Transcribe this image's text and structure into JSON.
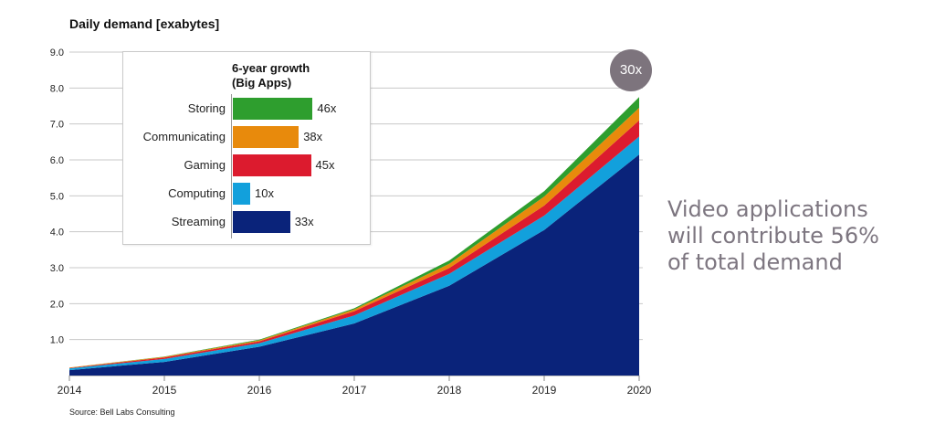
{
  "chart_data": {
    "type": "area",
    "stacked": true,
    "title": "Daily demand [exabytes]",
    "x": [
      "2014",
      "2015",
      "2016",
      "2017",
      "2018",
      "2019",
      "2020"
    ],
    "yticks": [
      "1.0",
      "2.0",
      "3.0",
      "4.0",
      "5.0",
      "6.0",
      "7.0",
      "8.0",
      "9.0"
    ],
    "ylim": [
      0,
      9
    ],
    "grid": true,
    "series": [
      {
        "name": "Streaming",
        "color": "#0a237a",
        "values": [
          0.15,
          0.38,
          0.8,
          1.45,
          2.5,
          4.05,
          6.15
        ]
      },
      {
        "name": "Computing",
        "color": "#12a0dc",
        "values": [
          0.05,
          0.08,
          0.1,
          0.22,
          0.33,
          0.4,
          0.5
        ]
      },
      {
        "name": "Gaming",
        "color": "#dc1b2e",
        "values": [
          0.01,
          0.04,
          0.05,
          0.12,
          0.16,
          0.28,
          0.45
        ]
      },
      {
        "name": "Communicating",
        "color": "#e88a0c",
        "values": [
          0.01,
          0.02,
          0.03,
          0.05,
          0.12,
          0.25,
          0.35
        ]
      },
      {
        "name": "Storing",
        "color": "#2e9e2e",
        "values": [
          0.0,
          0.01,
          0.02,
          0.03,
          0.09,
          0.15,
          0.3
        ]
      }
    ],
    "badge": "30x",
    "inset": {
      "title": "6-year growth\n(Big Apps)",
      "bars": [
        {
          "label": "Storing",
          "value": 46,
          "display": "46x",
          "color": "#2e9e2e"
        },
        {
          "label": "Communicating",
          "value": 38,
          "display": "38x",
          "color": "#e88a0c"
        },
        {
          "label": "Gaming",
          "value": 45,
          "display": "45x",
          "color": "#dc1b2e"
        },
        {
          "label": "Computing",
          "value": 10,
          "display": "10x",
          "color": "#12a0dc"
        },
        {
          "label": "Streaming",
          "value": 33,
          "display": "33x",
          "color": "#0a237a"
        }
      ]
    }
  },
  "callout": "Video applications will contribute 56% of total demand",
  "source": "Source: Bell Labs Consulting"
}
